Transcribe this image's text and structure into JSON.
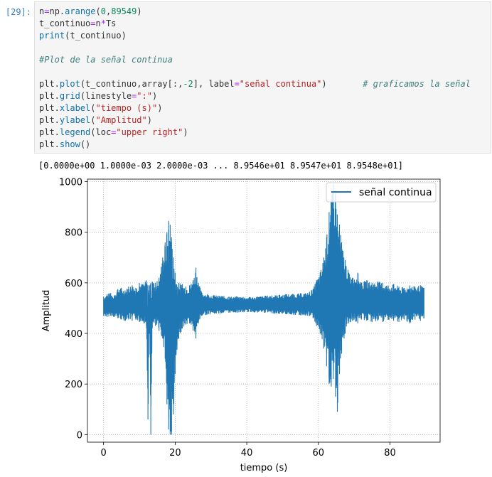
{
  "cell": {
    "prompt": "[29]:",
    "lines": [
      [
        {
          "t": "n",
          "c": "tok-var"
        },
        {
          "t": "=",
          "c": "tok-op"
        },
        {
          "t": "np.",
          "c": "tok-mod"
        },
        {
          "t": "arange",
          "c": "tok-fn"
        },
        {
          "t": "(",
          "c": "tok-var"
        },
        {
          "t": "0",
          "c": "tok-num"
        },
        {
          "t": ",",
          "c": "tok-var"
        },
        {
          "t": "89549",
          "c": "tok-num"
        },
        {
          "t": ")",
          "c": "tok-var"
        }
      ],
      [
        {
          "t": "t_continuo",
          "c": "tok-var"
        },
        {
          "t": "=",
          "c": "tok-op"
        },
        {
          "t": "n",
          "c": "tok-var"
        },
        {
          "t": "*",
          "c": "tok-op"
        },
        {
          "t": "Ts",
          "c": "tok-var"
        }
      ],
      [
        {
          "t": "print",
          "c": "tok-fn"
        },
        {
          "t": "(t_continuo)",
          "c": "tok-var"
        }
      ],
      [],
      [
        {
          "t": "#Plot de la señal continua",
          "c": "tok-cmt"
        }
      ],
      [],
      [
        {
          "t": "plt.",
          "c": "tok-var"
        },
        {
          "t": "plot",
          "c": "tok-fn"
        },
        {
          "t": "(t_continuo,array[:,",
          "c": "tok-var"
        },
        {
          "t": "-2",
          "c": "tok-num"
        },
        {
          "t": "], label",
          "c": "tok-var"
        },
        {
          "t": "=",
          "c": "tok-op"
        },
        {
          "t": "\"señal continua\"",
          "c": "tok-str"
        },
        {
          "t": ")       ",
          "c": "tok-var"
        },
        {
          "t": "# graficamos la señal",
          "c": "tok-cmt"
        }
      ],
      [
        {
          "t": "plt.",
          "c": "tok-var"
        },
        {
          "t": "grid",
          "c": "tok-fn"
        },
        {
          "t": "(linestyle",
          "c": "tok-var"
        },
        {
          "t": "=",
          "c": "tok-op"
        },
        {
          "t": "\":\"",
          "c": "tok-str"
        },
        {
          "t": ")",
          "c": "tok-var"
        }
      ],
      [
        {
          "t": "plt.",
          "c": "tok-var"
        },
        {
          "t": "xlabel",
          "c": "tok-fn"
        },
        {
          "t": "(",
          "c": "tok-var"
        },
        {
          "t": "\"tiempo (s)\"",
          "c": "tok-str"
        },
        {
          "t": ")",
          "c": "tok-var"
        }
      ],
      [
        {
          "t": "plt.",
          "c": "tok-var"
        },
        {
          "t": "ylabel",
          "c": "tok-fn"
        },
        {
          "t": "(",
          "c": "tok-var"
        },
        {
          "t": "\"Amplitud\"",
          "c": "tok-str"
        },
        {
          "t": ")",
          "c": "tok-var"
        }
      ],
      [
        {
          "t": "plt.",
          "c": "tok-var"
        },
        {
          "t": "legend",
          "c": "tok-fn"
        },
        {
          "t": "(loc",
          "c": "tok-var"
        },
        {
          "t": "=",
          "c": "tok-op"
        },
        {
          "t": "\"upper right\"",
          "c": "tok-str"
        },
        {
          "t": ")",
          "c": "tok-var"
        }
      ],
      [
        {
          "t": "plt.",
          "c": "tok-var"
        },
        {
          "t": "show",
          "c": "tok-fn"
        },
        {
          "t": "()",
          "c": "tok-var"
        }
      ]
    ]
  },
  "output": {
    "text": "[0.0000e+00 1.0000e-03 2.0000e-03 ... 8.9546e+01 8.9547e+01 8.9548e+01]"
  },
  "chart_data": {
    "type": "line",
    "xlabel": "tiempo (s)",
    "ylabel": "Amplitud",
    "xlim": [
      -4.5,
      94.0
    ],
    "ylim": [
      -30,
      1010
    ],
    "xticks": [
      0,
      20,
      40,
      60,
      80
    ],
    "yticks": [
      0,
      200,
      400,
      600,
      800,
      1000
    ],
    "grid": true,
    "grid_style": "dotted",
    "legend_position": "upper right",
    "line_color": "#1f77b4",
    "series": [
      {
        "name": "señal continua",
        "envelope": [
          {
            "x": 0.0,
            "min": 470,
            "max": 545
          },
          {
            "x": 1.0,
            "min": 465,
            "max": 555
          },
          {
            "x": 2.0,
            "min": 470,
            "max": 560
          },
          {
            "x": 3.0,
            "min": 465,
            "max": 550
          },
          {
            "x": 4.0,
            "min": 460,
            "max": 575
          },
          {
            "x": 5.0,
            "min": 455,
            "max": 580
          },
          {
            "x": 6.0,
            "min": 450,
            "max": 570
          },
          {
            "x": 7.0,
            "min": 455,
            "max": 585
          },
          {
            "x": 8.0,
            "min": 450,
            "max": 590
          },
          {
            "x": 9.0,
            "min": 455,
            "max": 580
          },
          {
            "x": 10.0,
            "min": 445,
            "max": 600
          },
          {
            "x": 11.0,
            "min": 450,
            "max": 595
          },
          {
            "x": 12.0,
            "min": 420,
            "max": 610
          },
          {
            "x": 12.4,
            "min": 60,
            "max": 590
          },
          {
            "x": 12.8,
            "min": 430,
            "max": 590
          },
          {
            "x": 13.2,
            "min": 0,
            "max": 600
          },
          {
            "x": 13.6,
            "min": 420,
            "max": 605
          },
          {
            "x": 14.5,
            "min": 430,
            "max": 600
          },
          {
            "x": 15.5,
            "min": 410,
            "max": 620
          },
          {
            "x": 16.5,
            "min": 380,
            "max": 700
          },
          {
            "x": 17.2,
            "min": 300,
            "max": 760
          },
          {
            "x": 17.7,
            "min": 120,
            "max": 800
          },
          {
            "x": 18.2,
            "min": 20,
            "max": 845
          },
          {
            "x": 18.6,
            "min": 0,
            "max": 830
          },
          {
            "x": 19.0,
            "min": 0,
            "max": 780
          },
          {
            "x": 19.5,
            "min": 80,
            "max": 700
          },
          {
            "x": 20.0,
            "min": 240,
            "max": 640
          },
          {
            "x": 21.0,
            "min": 380,
            "max": 600
          },
          {
            "x": 22.0,
            "min": 420,
            "max": 595
          },
          {
            "x": 23.0,
            "min": 435,
            "max": 585
          },
          {
            "x": 24.0,
            "min": 440,
            "max": 590
          },
          {
            "x": 25.0,
            "min": 410,
            "max": 610
          },
          {
            "x": 25.8,
            "min": 380,
            "max": 660
          },
          {
            "x": 26.5,
            "min": 440,
            "max": 600
          },
          {
            "x": 27.5,
            "min": 470,
            "max": 560
          },
          {
            "x": 29.0,
            "min": 475,
            "max": 555
          },
          {
            "x": 31.0,
            "min": 478,
            "max": 550
          },
          {
            "x": 33.0,
            "min": 480,
            "max": 548
          },
          {
            "x": 35.0,
            "min": 482,
            "max": 545
          },
          {
            "x": 37.0,
            "min": 483,
            "max": 545
          },
          {
            "x": 39.0,
            "min": 484,
            "max": 544
          },
          {
            "x": 41.0,
            "min": 485,
            "max": 543
          },
          {
            "x": 43.0,
            "min": 483,
            "max": 545
          },
          {
            "x": 45.0,
            "min": 482,
            "max": 548
          },
          {
            "x": 47.0,
            "min": 480,
            "max": 550
          },
          {
            "x": 49.0,
            "min": 478,
            "max": 552
          },
          {
            "x": 51.0,
            "min": 476,
            "max": 555
          },
          {
            "x": 53.0,
            "min": 474,
            "max": 555
          },
          {
            "x": 55.0,
            "min": 472,
            "max": 558
          },
          {
            "x": 57.0,
            "min": 470,
            "max": 560
          },
          {
            "x": 58.5,
            "min": 460,
            "max": 575
          },
          {
            "x": 59.5,
            "min": 430,
            "max": 610
          },
          {
            "x": 60.5,
            "min": 400,
            "max": 640
          },
          {
            "x": 61.5,
            "min": 340,
            "max": 700
          },
          {
            "x": 62.3,
            "min": 270,
            "max": 780
          },
          {
            "x": 63.0,
            "min": 200,
            "max": 880
          },
          {
            "x": 63.6,
            "min": 190,
            "max": 930
          },
          {
            "x": 64.2,
            "min": 220,
            "max": 990
          },
          {
            "x": 64.8,
            "min": 150,
            "max": 960
          },
          {
            "x": 65.3,
            "min": 90,
            "max": 870
          },
          {
            "x": 65.9,
            "min": 240,
            "max": 830
          },
          {
            "x": 66.5,
            "min": 320,
            "max": 760
          },
          {
            "x": 67.5,
            "min": 400,
            "max": 690
          },
          {
            "x": 68.5,
            "min": 440,
            "max": 640
          },
          {
            "x": 69.5,
            "min": 450,
            "max": 620
          },
          {
            "x": 71.0,
            "min": 440,
            "max": 640
          },
          {
            "x": 72.0,
            "min": 455,
            "max": 600
          },
          {
            "x": 73.5,
            "min": 450,
            "max": 610
          },
          {
            "x": 75.0,
            "min": 445,
            "max": 600
          },
          {
            "x": 76.5,
            "min": 450,
            "max": 605
          },
          {
            "x": 78.0,
            "min": 445,
            "max": 600
          },
          {
            "x": 79.5,
            "min": 455,
            "max": 590
          },
          {
            "x": 81.0,
            "min": 450,
            "max": 595
          },
          {
            "x": 82.5,
            "min": 445,
            "max": 585
          },
          {
            "x": 84.0,
            "min": 455,
            "max": 580
          },
          {
            "x": 85.5,
            "min": 440,
            "max": 590
          },
          {
            "x": 87.0,
            "min": 455,
            "max": 585
          },
          {
            "x": 88.5,
            "min": 450,
            "max": 590
          },
          {
            "x": 89.5,
            "min": 460,
            "max": 580
          }
        ]
      }
    ]
  }
}
